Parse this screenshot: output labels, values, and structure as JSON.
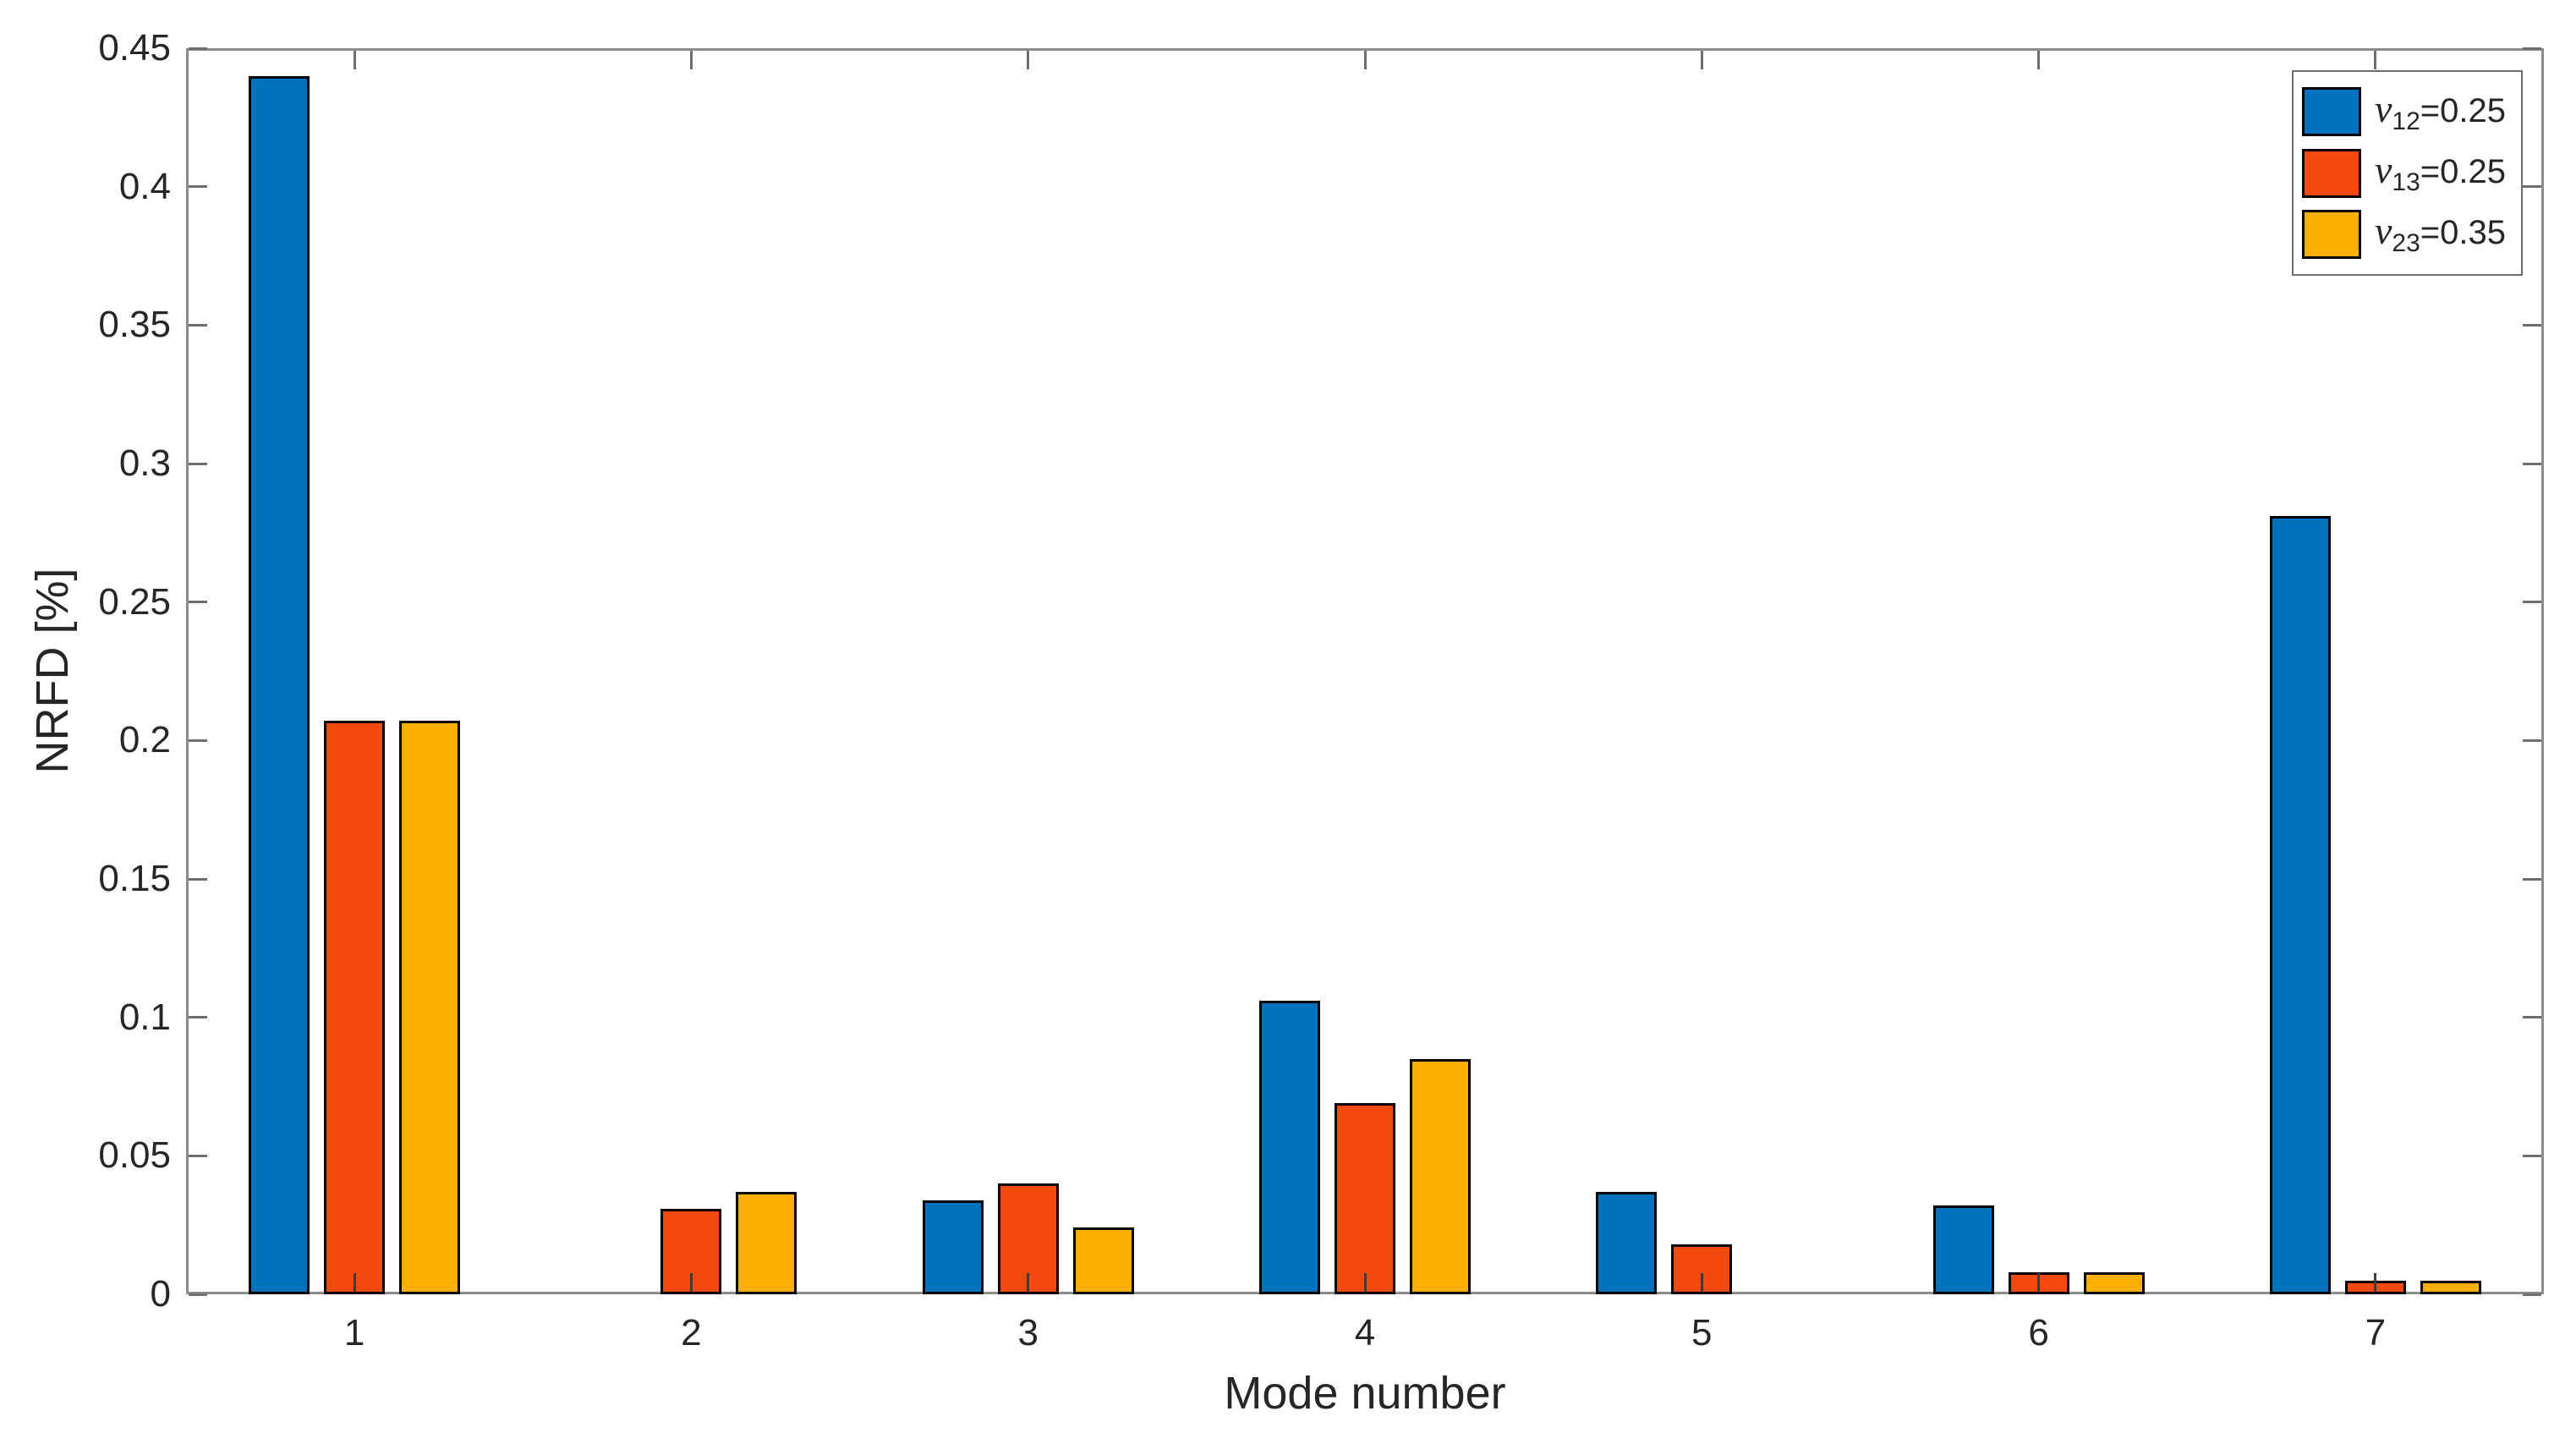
{
  "chart_data": {
    "type": "bar",
    "title": "",
    "xlabel": "Mode number",
    "ylabel": "NRFD [%]",
    "categories": [
      "1",
      "2",
      "3",
      "4",
      "5",
      "6",
      "7"
    ],
    "series": [
      {
        "name": "ν12=0.25",
        "label_nu": "ν",
        "label_sub": "12",
        "label_eq": "=0.25",
        "color": "#0072BD",
        "values": [
          0.44,
          0,
          0.034,
          0.106,
          0.037,
          0.032,
          0.281
        ]
      },
      {
        "name": "ν13=0.25",
        "label_nu": "ν",
        "label_sub": "13",
        "label_eq": "=0.25",
        "color": "#F24B0D",
        "values": [
          0.207,
          0.031,
          0.04,
          0.069,
          0.018,
          0.008,
          0.005
        ]
      },
      {
        "name": "ν23=0.35",
        "label_nu": "ν",
        "label_sub": "23",
        "label_eq": "=0.35",
        "color": "#FCB005",
        "values": [
          0.207,
          0.037,
          0.024,
          0.085,
          0,
          0.008,
          0.005
        ]
      }
    ],
    "ylim": [
      0,
      0.45
    ],
    "y_ticks": [
      0,
      0.05,
      0.1,
      0.15,
      0.2,
      0.25,
      0.3,
      0.35,
      0.4,
      0.45
    ],
    "y_tick_labels": [
      "0",
      "0.05",
      "0.1",
      "0.15",
      "0.2",
      "0.25",
      "0.3",
      "0.35",
      "0.4",
      "0.45"
    ],
    "grid": false,
    "legend_position": "top-right",
    "colors": {
      "background": "#ffffff",
      "axis_box": "#8c8c8c",
      "tick": "#6f6f6f",
      "bottom_tick": "#3c3c3c",
      "text": "#262626",
      "bar_edge": "#000000",
      "legend_border": "#6e6e6e"
    }
  }
}
